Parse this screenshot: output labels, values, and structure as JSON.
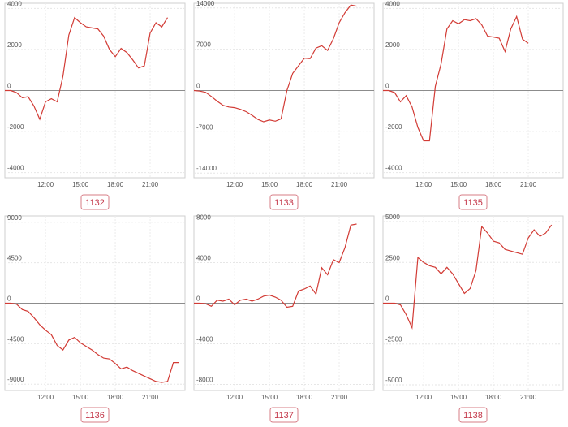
{
  "chart_data": [
    {
      "type": "line",
      "title": "1132",
      "color": "#d23b35",
      "grid": true,
      "x": [
        8.5,
        9,
        9.5,
        10,
        10.5,
        11,
        11.5,
        12,
        12.5,
        13,
        13.5,
        14,
        14.5,
        15,
        15.5,
        16,
        16.5,
        17,
        17.5,
        18,
        18.5,
        19,
        19.5,
        20,
        20.5,
        21,
        21.5,
        22,
        22.5
      ],
      "values": [
        0,
        0,
        -100,
        -350,
        -300,
        -750,
        -1400,
        -550,
        -400,
        -550,
        700,
        2700,
        3550,
        3300,
        3100,
        3050,
        3000,
        2650,
        2000,
        1650,
        2050,
        1850,
        1500,
        1100,
        1200,
        2800,
        3300,
        3100,
        3550
      ],
      "xlim": [
        8.5,
        24
      ],
      "ylim": [
        -4250,
        4250
      ],
      "xticks": [
        {
          "value": 12,
          "label": "12:00"
        },
        {
          "value": 15,
          "label": "15:00"
        },
        {
          "value": 18,
          "label": "18:00"
        },
        {
          "value": 21,
          "label": "21:00"
        }
      ],
      "yticks": [
        4000,
        2000,
        0,
        -2000,
        -4000
      ]
    },
    {
      "type": "line",
      "title": "1133",
      "color": "#d23b35",
      "grid": true,
      "x": [
        8.5,
        9,
        9.5,
        10,
        10.5,
        11,
        11.5,
        12,
        12.5,
        13,
        13.5,
        14,
        14.5,
        15,
        15.5,
        16,
        16.5,
        17,
        17.5,
        18,
        18.5,
        19,
        19.5,
        20,
        20.5,
        21,
        21.5,
        22,
        22.5
      ],
      "values": [
        0,
        -100,
        -300,
        -1000,
        -1800,
        -2500,
        -2800,
        -2900,
        -3200,
        -3600,
        -4200,
        -4900,
        -5300,
        -5000,
        -5200,
        -4800,
        0,
        2900,
        4200,
        5500,
        5400,
        7200,
        7600,
        6800,
        8800,
        11500,
        13200,
        14500,
        14300
      ],
      "xlim": [
        8.5,
        24
      ],
      "ylim": [
        -14800,
        14800
      ],
      "xticks": [
        {
          "value": 12,
          "label": "12:00"
        },
        {
          "value": 15,
          "label": "15:00"
        },
        {
          "value": 18,
          "label": "18:00"
        },
        {
          "value": 21,
          "label": "21:00"
        }
      ],
      "yticks": [
        14000,
        7000,
        0,
        -7000,
        -14000
      ]
    },
    {
      "type": "line",
      "title": "1135",
      "color": "#d23b35",
      "grid": true,
      "x": [
        8.5,
        9,
        9.5,
        10,
        10.5,
        11,
        11.5,
        12,
        12.5,
        13,
        13.5,
        14,
        14.5,
        15,
        15.5,
        16,
        16.5,
        17,
        17.5,
        18,
        18.5,
        19,
        19.5,
        20,
        20.5,
        21
      ],
      "values": [
        0,
        0,
        -100,
        -550,
        -250,
        -800,
        -1800,
        -2450,
        -2450,
        200,
        1300,
        3000,
        3400,
        3250,
        3450,
        3400,
        3500,
        3200,
        2650,
        2600,
        2550,
        1900,
        3000,
        3600,
        2500,
        2300
      ],
      "xlim": [
        8.5,
        24
      ],
      "ylim": [
        -4250,
        4250
      ],
      "xticks": [
        {
          "value": 12,
          "label": "12:00"
        },
        {
          "value": 15,
          "label": "15:00"
        },
        {
          "value": 18,
          "label": "18:00"
        },
        {
          "value": 21,
          "label": "21:00"
        }
      ],
      "yticks": [
        4000,
        2000,
        0,
        -2000,
        -4000
      ]
    },
    {
      "type": "line",
      "title": "1136",
      "color": "#d23b35",
      "grid": true,
      "x": [
        8.5,
        9,
        9.5,
        10,
        10.5,
        11,
        11.5,
        12,
        12.5,
        13,
        13.5,
        14,
        14.5,
        15,
        15.5,
        16,
        16.5,
        17,
        17.5,
        18,
        18.5,
        19,
        19.5,
        20,
        20.5,
        21,
        21.5,
        22,
        22.5,
        23,
        23.5
      ],
      "values": [
        0,
        0,
        -100,
        -700,
        -900,
        -1600,
        -2400,
        -3000,
        -3500,
        -4700,
        -5200,
        -4100,
        -3800,
        -4400,
        -4800,
        -5200,
        -5700,
        -6100,
        -6200,
        -6700,
        -7300,
        -7100,
        -7500,
        -7800,
        -8100,
        -8400,
        -8700,
        -8800,
        -8700,
        -6600,
        -6600
      ],
      "xlim": [
        8.5,
        24
      ],
      "ylim": [
        -9700,
        9700
      ],
      "xticks": [
        {
          "value": 12,
          "label": "12:00"
        },
        {
          "value": 15,
          "label": "15:00"
        },
        {
          "value": 18,
          "label": "18:00"
        },
        {
          "value": 21,
          "label": "21:00"
        }
      ],
      "yticks": [
        9000,
        4500,
        0,
        -4500,
        -9000
      ]
    },
    {
      "type": "line",
      "title": "1137",
      "color": "#d23b35",
      "grid": true,
      "x": [
        8.5,
        9,
        9.5,
        10,
        10.5,
        11,
        11.5,
        12,
        12.5,
        13,
        13.5,
        14,
        14.5,
        15,
        15.5,
        16,
        16.5,
        17,
        17.5,
        18,
        18.5,
        19,
        19.5,
        20,
        20.5,
        21,
        21.5,
        22,
        22.5
      ],
      "values": [
        0,
        0,
        -50,
        -300,
        300,
        200,
        400,
        -150,
        300,
        400,
        200,
        400,
        700,
        800,
        600,
        300,
        -400,
        -300,
        1200,
        1400,
        1700,
        900,
        3500,
        2800,
        4300,
        4000,
        5500,
        7700,
        7800
      ],
      "xlim": [
        8.5,
        24
      ],
      "ylim": [
        -8600,
        8600
      ],
      "xticks": [
        {
          "value": 12,
          "label": "12:00"
        },
        {
          "value": 15,
          "label": "15:00"
        },
        {
          "value": 18,
          "label": "18:00"
        },
        {
          "value": 21,
          "label": "21:00"
        }
      ],
      "yticks": [
        8000,
        4000,
        0,
        -4000,
        -8000
      ]
    },
    {
      "type": "line",
      "title": "1138",
      "color": "#d23b35",
      "grid": true,
      "x": [
        8.5,
        9,
        9.5,
        10,
        10.5,
        11,
        11.5,
        12,
        12.5,
        13,
        13.5,
        14,
        14.5,
        15,
        15.5,
        16,
        16.5,
        17,
        17.5,
        18,
        18.5,
        19,
        19.5,
        20,
        20.5,
        21,
        21.5,
        22,
        22.5,
        23
      ],
      "values": [
        0,
        0,
        0,
        -100,
        -700,
        -1500,
        2800,
        2500,
        2300,
        2200,
        1800,
        2200,
        1800,
        1200,
        600,
        900,
        2000,
        4700,
        4300,
        3800,
        3700,
        3300,
        3200,
        3100,
        3000,
        4000,
        4500,
        4100,
        4300,
        4800
      ],
      "xlim": [
        8.5,
        24
      ],
      "ylim": [
        -5350,
        5350
      ],
      "xticks": [
        {
          "value": 12,
          "label": "12:00"
        },
        {
          "value": 15,
          "label": "15:00"
        },
        {
          "value": 18,
          "label": "18:00"
        },
        {
          "value": 21,
          "label": "21:00"
        }
      ],
      "yticks": [
        5000,
        2500,
        0,
        -2500,
        -5000
      ]
    }
  ]
}
